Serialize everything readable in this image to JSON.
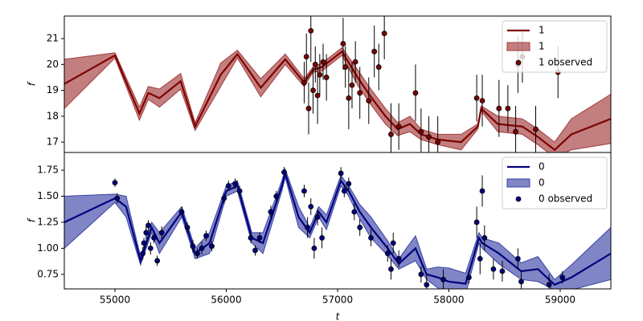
{
  "chart_data": [
    {
      "type": "line",
      "ylabel": "f",
      "x": [
        54545,
        55000,
        55220,
        55300,
        55400,
        55590,
        55720,
        55950,
        56100,
        56310,
        56530,
        56700,
        56780,
        56860,
        57040,
        57180,
        57290,
        57430,
        57540,
        57650,
        57750,
        57900,
        58110,
        58260,
        58290,
        58440,
        58660,
        58800,
        58950,
        59100,
        59455
      ],
      "series": [
        {
          "name": "1",
          "color": "#7f0000",
          "values": [
            19.25,
            20.35,
            18.1,
            18.9,
            18.7,
            19.35,
            17.6,
            19.6,
            20.4,
            19.1,
            20.2,
            19.3,
            19.8,
            19.9,
            20.5,
            19.5,
            18.8,
            18.0,
            17.5,
            17.7,
            17.3,
            17.1,
            17.0,
            17.6,
            18.3,
            17.7,
            17.6,
            17.2,
            16.7,
            17.3,
            17.9
          ]
        }
      ],
      "band": {
        "name": "1",
        "color": "#a33a3a",
        "lower": [
          18.3,
          20.25,
          17.85,
          18.65,
          18.35,
          19.05,
          17.45,
          19.15,
          20.25,
          18.75,
          20.0,
          19.15,
          19.7,
          19.75,
          20.35,
          19.2,
          18.5,
          17.7,
          17.25,
          17.4,
          17.1,
          16.9,
          16.7,
          17.5,
          18.2,
          17.4,
          17.3,
          16.9,
          16.4,
          16.7,
          16.95
        ],
        "upper": [
          20.2,
          20.45,
          18.35,
          19.15,
          19.05,
          19.65,
          17.75,
          20.05,
          20.55,
          19.45,
          20.4,
          19.45,
          19.9,
          20.05,
          20.65,
          19.8,
          19.1,
          18.3,
          17.75,
          18.0,
          17.5,
          17.3,
          17.3,
          17.7,
          18.4,
          18.0,
          17.9,
          17.5,
          17.0,
          17.9,
          18.85
        ]
      },
      "observed": {
        "name": "1 observed",
        "color": "#7f0000",
        "x": [
          56700,
          56720,
          56740,
          56760,
          56780,
          56800,
          56820,
          56840,
          56870,
          56900,
          57050,
          57070,
          57100,
          57130,
          57160,
          57200,
          57280,
          57330,
          57370,
          57420,
          57480,
          57550,
          57700,
          57750,
          57820,
          57900,
          58250,
          58300,
          58450,
          58530,
          58600,
          58620,
          58660,
          58780,
          58980
        ],
        "y": [
          19.3,
          20.3,
          18.3,
          21.3,
          19.0,
          20.0,
          18.8,
          19.6,
          20.1,
          19.5,
          20.8,
          19.9,
          18.7,
          19.2,
          20.1,
          18.9,
          18.6,
          20.5,
          19.9,
          21.2,
          17.3,
          17.6,
          18.9,
          17.4,
          17.2,
          17.0,
          18.7,
          18.6,
          18.3,
          18.3,
          17.4,
          20.0,
          20.3,
          17.5,
          19.7
        ],
        "err": [
          0.8,
          0.9,
          1.0,
          1.2,
          0.9,
          0.7,
          1.1,
          0.8,
          0.7,
          0.9,
          1.0,
          0.8,
          1.2,
          0.9,
          0.8,
          1.0,
          0.9,
          1.0,
          0.9,
          1.0,
          1.2,
          0.9,
          1.1,
          0.9,
          0.8,
          1.0,
          0.9,
          1.0,
          1.1,
          0.9,
          1.0,
          1.1,
          1.0,
          0.9,
          1.0
        ]
      },
      "xlim": [
        54545,
        59455
      ],
      "ylim": [
        16.6,
        21.87
      ],
      "yticks": [
        17,
        18,
        19,
        20,
        21
      ],
      "legend": "upper right"
    },
    {
      "type": "line",
      "ylabel": "f",
      "xlabel": "t",
      "x": [
        54545,
        55000,
        55100,
        55230,
        55330,
        55400,
        55600,
        55720,
        55850,
        56000,
        56100,
        56230,
        56330,
        56500,
        56530,
        56650,
        56750,
        56830,
        56900,
        57030,
        57100,
        57200,
        57300,
        57450,
        57550,
        57700,
        57800,
        57900,
        58000,
        58150,
        58270,
        58300,
        58450,
        58650,
        58800,
        58950,
        59100,
        59455
      ],
      "series": [
        {
          "name": "0",
          "color": "#00007f",
          "values": [
            1.25,
            1.48,
            1.4,
            0.88,
            1.2,
            1.05,
            1.35,
            0.95,
            1.05,
            1.55,
            1.6,
            1.1,
            1.05,
            1.6,
            1.72,
            1.3,
            1.15,
            1.35,
            1.25,
            1.65,
            1.55,
            1.35,
            1.2,
            1.0,
            0.85,
            1.0,
            0.75,
            0.72,
            0.68,
            0.66,
            1.1,
            1.05,
            0.95,
            0.78,
            0.8,
            0.65,
            0.72,
            0.95
          ]
        }
      ],
      "band": {
        "name": "0",
        "color": "#3a44a6",
        "lower": [
          1.0,
          1.44,
          1.3,
          0.84,
          1.15,
          0.95,
          1.3,
          0.9,
          0.95,
          1.5,
          1.55,
          1.05,
          0.95,
          1.55,
          1.68,
          1.2,
          1.1,
          1.3,
          1.18,
          1.6,
          1.5,
          1.28,
          1.1,
          0.93,
          0.8,
          0.88,
          0.7,
          0.62,
          0.55,
          0.56,
          1.05,
          1.0,
          0.85,
          0.7,
          0.68,
          0.6,
          0.6,
          0.7
        ],
        "upper": [
          1.5,
          1.52,
          1.5,
          0.92,
          1.25,
          1.15,
          1.4,
          1.0,
          1.15,
          1.6,
          1.65,
          1.15,
          1.15,
          1.65,
          1.76,
          1.4,
          1.2,
          1.4,
          1.32,
          1.7,
          1.6,
          1.42,
          1.3,
          1.07,
          0.9,
          1.12,
          0.8,
          0.82,
          0.81,
          0.76,
          1.15,
          1.1,
          1.05,
          0.86,
          0.92,
          0.7,
          0.84,
          1.2
        ]
      },
      "observed": {
        "name": "0 observed",
        "color": "#00007f",
        "x": [
          55000,
          55020,
          55250,
          55260,
          55280,
          55300,
          55320,
          55350,
          55380,
          55420,
          55600,
          55650,
          55700,
          55740,
          55780,
          55820,
          55870,
          55980,
          56020,
          56080,
          56120,
          56220,
          56260,
          56300,
          56400,
          56450,
          56520,
          56700,
          56730,
          56760,
          56790,
          56820,
          56860,
          57030,
          57060,
          57100,
          57150,
          57200,
          57300,
          57450,
          57480,
          57500,
          57550,
          57750,
          57800,
          57950,
          58180,
          58250,
          58280,
          58300,
          58320,
          58400,
          58480,
          58620,
          58650,
          58900,
          59020
        ],
        "y": [
          1.63,
          1.48,
          0.95,
          1.05,
          1.15,
          1.22,
          1.0,
          1.1,
          0.88,
          1.15,
          1.35,
          1.2,
          1.02,
          0.95,
          1.0,
          1.12,
          1.02,
          1.48,
          1.6,
          1.62,
          1.55,
          1.1,
          0.98,
          1.1,
          1.35,
          1.5,
          1.73,
          1.55,
          1.2,
          1.4,
          1.0,
          1.3,
          1.1,
          1.72,
          1.55,
          1.62,
          1.35,
          1.2,
          1.1,
          0.95,
          0.8,
          1.05,
          0.9,
          0.75,
          0.65,
          0.7,
          0.72,
          1.25,
          0.9,
          1.55,
          1.1,
          0.8,
          0.78,
          0.9,
          0.68,
          0.65,
          0.72
        ],
        "err": [
          0.04,
          0.05,
          0.06,
          0.05,
          0.06,
          0.05,
          0.06,
          0.05,
          0.05,
          0.06,
          0.05,
          0.05,
          0.06,
          0.05,
          0.06,
          0.05,
          0.05,
          0.05,
          0.05,
          0.05,
          0.05,
          0.05,
          0.05,
          0.05,
          0.06,
          0.05,
          0.05,
          0.06,
          0.1,
          0.08,
          0.1,
          0.08,
          0.1,
          0.06,
          0.06,
          0.06,
          0.08,
          0.08,
          0.08,
          0.08,
          0.1,
          0.1,
          0.08,
          0.08,
          0.1,
          0.1,
          0.06,
          0.15,
          0.15,
          0.15,
          0.12,
          0.1,
          0.1,
          0.1,
          0.1,
          0.1,
          0.06
        ]
      },
      "xlim": [
        54545,
        59455
      ],
      "ylim": [
        0.61,
        1.92
      ],
      "xticks": [
        55000,
        56000,
        57000,
        58000,
        59000
      ],
      "yticks": [
        {
          "value": 0.75,
          "label": "0.75"
        },
        {
          "value": 1.0,
          "label": "1.00"
        },
        {
          "value": 1.25,
          "label": "1.25"
        },
        {
          "value": 1.5,
          "label": "1.50"
        },
        {
          "value": 1.75,
          "label": "1.75"
        }
      ],
      "legend": "upper right"
    }
  ]
}
